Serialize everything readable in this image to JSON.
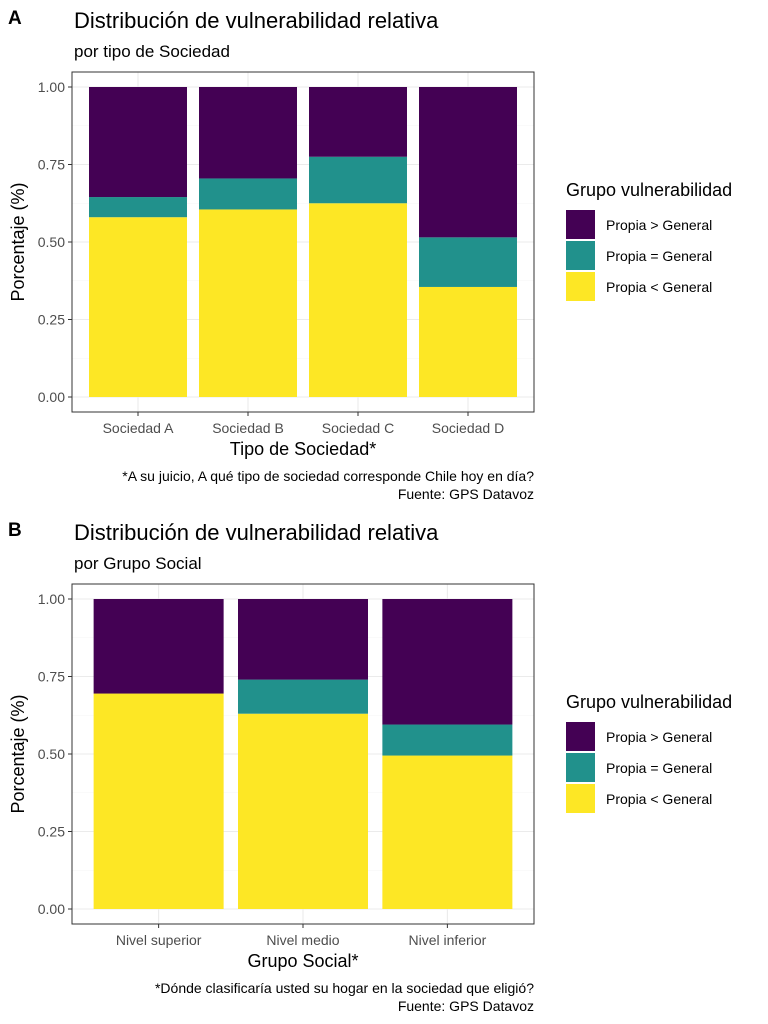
{
  "colors": {
    "propia_mayor": "#440154",
    "propia_igual": "#21918C",
    "propia_menor": "#FDE725",
    "panel_border": "#333333",
    "grid_major": "#EBEBEB",
    "grid_minor": "#F5F5F5",
    "tick_text": "#4D4D4D"
  },
  "chart_data": [
    {
      "type": "bar",
      "stacked": true,
      "panel_label": "A",
      "title": "Distribución de vulnerabilidad relativa",
      "subtitle": "por tipo de Sociedad",
      "xlabel": "Tipo de Sociedad*",
      "ylabel": "Porcentaje (%)",
      "ylim": [
        0,
        1
      ],
      "yticks": [
        "0.00",
        "0.25",
        "0.50",
        "0.75",
        "1.00"
      ],
      "categories": [
        "Sociedad A",
        "Sociedad B",
        "Sociedad C",
        "Sociedad D"
      ],
      "series": [
        {
          "name": "Propia < General",
          "color": "#FDE725",
          "values": [
            0.58,
            0.605,
            0.625,
            0.355
          ]
        },
        {
          "name": "Propia = General",
          "color": "#21918C",
          "values": [
            0.065,
            0.1,
            0.15,
            0.16
          ]
        },
        {
          "name": "Propia > General",
          "color": "#440154",
          "values": [
            0.355,
            0.295,
            0.225,
            0.485
          ]
        }
      ],
      "legend_title": "Grupo vulnerabilidad",
      "legend_position": "right",
      "caption_line1": "*A su juicio, A qué tipo de sociedad corresponde Chile hoy en día?",
      "caption_line2": "Fuente: GPS Datavoz",
      "grid": true
    },
    {
      "type": "bar",
      "stacked": true,
      "panel_label": "B",
      "title": "Distribución de vulnerabilidad relativa",
      "subtitle": "por Grupo Social",
      "xlabel": "Grupo Social*",
      "ylabel": "Porcentaje (%)",
      "ylim": [
        0,
        1
      ],
      "yticks": [
        "0.00",
        "0.25",
        "0.50",
        "0.75",
        "1.00"
      ],
      "categories": [
        "Nivel superior",
        "Nivel medio",
        "Nivel inferior"
      ],
      "series": [
        {
          "name": "Propia < General",
          "color": "#FDE725",
          "values": [
            0.695,
            0.63,
            0.495
          ]
        },
        {
          "name": "Propia = General",
          "color": "#21918C",
          "values": [
            0.0,
            0.11,
            0.1
          ]
        },
        {
          "name": "Propia > General",
          "color": "#440154",
          "values": [
            0.305,
            0.26,
            0.405
          ]
        }
      ],
      "legend_title": "Grupo vulnerabilidad",
      "legend_position": "right",
      "caption_line1": "*Dónde clasificaría usted su hogar en la sociedad que eligió?",
      "caption_line2": "Fuente: GPS Datavoz",
      "grid": true
    }
  ],
  "legend_items": [
    {
      "label": "Propia > General",
      "color": "#440154"
    },
    {
      "label": "Propia = General",
      "color": "#21918C"
    },
    {
      "label": "Propia < General",
      "color": "#FDE725"
    }
  ]
}
